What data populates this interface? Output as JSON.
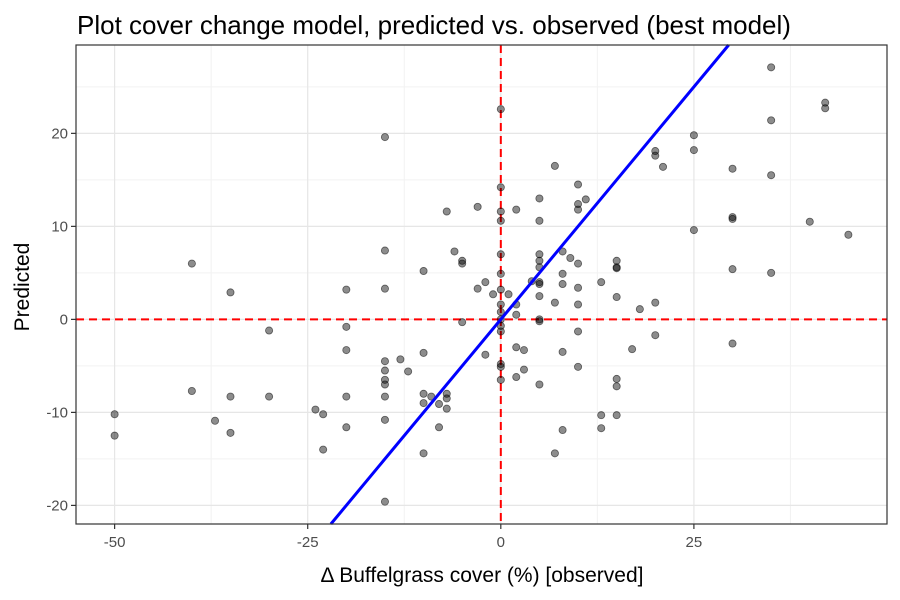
{
  "chart_data": {
    "type": "scatter",
    "title": "Plot cover change model, predicted vs. observed (best model)",
    "xlabel": "Δ Buffelgrass cover (%) [observed]",
    "ylabel": "Predicted",
    "xlim": [
      -55,
      50
    ],
    "ylim": [
      -22,
      29.5
    ],
    "x_ticks": [
      -50,
      -25,
      0,
      25
    ],
    "y_ticks": [
      -20,
      -10,
      0,
      10,
      20
    ],
    "grid": true,
    "reference_lines": [
      {
        "orientation": "vertical",
        "value": 0,
        "style": "dashed",
        "color": "#ff0000"
      },
      {
        "orientation": "horizontal",
        "value": 0,
        "style": "dashed",
        "color": "#ff0000"
      }
    ],
    "fit_line": {
      "slope": 1,
      "intercept": 0,
      "color": "#0000ff"
    },
    "point_color": "#000000",
    "point_opacity": 0.45,
    "points": [
      [
        -50,
        -10.2
      ],
      [
        -50,
        -12.5
      ],
      [
        -40,
        6.0
      ],
      [
        -40,
        -7.7
      ],
      [
        -37,
        -10.9
      ],
      [
        -35,
        2.9
      ],
      [
        -35,
        -8.3
      ],
      [
        -35,
        -12.2
      ],
      [
        -30,
        -1.2
      ],
      [
        -30,
        -8.3
      ],
      [
        -24,
        -9.7
      ],
      [
        -23,
        -10.2
      ],
      [
        -23,
        -14.0
      ],
      [
        -20,
        3.2
      ],
      [
        -20,
        -0.8
      ],
      [
        -20,
        -3.3
      ],
      [
        -20,
        -8.3
      ],
      [
        -20,
        -11.6
      ],
      [
        -15,
        19.6
      ],
      [
        -15,
        7.4
      ],
      [
        -15,
        3.3
      ],
      [
        -15,
        -4.5
      ],
      [
        -15,
        -5.5
      ],
      [
        -15,
        -6.5
      ],
      [
        -15,
        -7.0
      ],
      [
        -15,
        -8.3
      ],
      [
        -15,
        -10.8
      ],
      [
        -15,
        -19.6
      ],
      [
        -13,
        -4.3
      ],
      [
        -12,
        -5.6
      ],
      [
        -10,
        5.2
      ],
      [
        -10,
        -3.6
      ],
      [
        -10,
        -8.0
      ],
      [
        -10,
        -9.0
      ],
      [
        -10,
        -14.4
      ],
      [
        -9,
        -8.3
      ],
      [
        -8,
        -9.1
      ],
      [
        -8,
        -11.6
      ],
      [
        -7,
        -8.0
      ],
      [
        -7,
        -8.5
      ],
      [
        -7,
        -9.6
      ],
      [
        -7,
        11.6
      ],
      [
        -6,
        7.3
      ],
      [
        -5,
        6.3
      ],
      [
        -5,
        6.0
      ],
      [
        -5,
        -0.3
      ],
      [
        -3,
        12.1
      ],
      [
        -3,
        3.3
      ],
      [
        -2,
        4.0
      ],
      [
        -2,
        -3.8
      ],
      [
        -1,
        2.7
      ],
      [
        0,
        22.6
      ],
      [
        0,
        14.2
      ],
      [
        0,
        11.6
      ],
      [
        0,
        10.6
      ],
      [
        0,
        7.0
      ],
      [
        0,
        4.9
      ],
      [
        0,
        3.2
      ],
      [
        0,
        1.6
      ],
      [
        0,
        0.8
      ],
      [
        0,
        0.0
      ],
      [
        0,
        -0.7
      ],
      [
        0,
        -1.3
      ],
      [
        0,
        -4.8
      ],
      [
        0,
        -5.1
      ],
      [
        0,
        -6.5
      ],
      [
        1,
        2.7
      ],
      [
        2,
        11.8
      ],
      [
        2,
        1.6
      ],
      [
        2,
        0.5
      ],
      [
        2,
        -3.0
      ],
      [
        2,
        -6.2
      ],
      [
        3,
        -3.3
      ],
      [
        3,
        -5.4
      ],
      [
        4,
        4.1
      ],
      [
        5,
        13.0
      ],
      [
        5,
        10.6
      ],
      [
        5,
        7.0
      ],
      [
        5,
        6.3
      ],
      [
        5,
        5.6
      ],
      [
        5,
        4.0
      ],
      [
        5,
        3.8
      ],
      [
        5,
        2.5
      ],
      [
        5,
        0.0
      ],
      [
        5,
        -0.2
      ],
      [
        5,
        -7.0
      ],
      [
        7,
        16.5
      ],
      [
        7,
        1.8
      ],
      [
        7,
        -14.4
      ],
      [
        8,
        7.3
      ],
      [
        8,
        4.9
      ],
      [
        8,
        3.8
      ],
      [
        8,
        -3.5
      ],
      [
        8,
        -11.9
      ],
      [
        9,
        6.6
      ],
      [
        10,
        14.5
      ],
      [
        10,
        12.4
      ],
      [
        10,
        11.8
      ],
      [
        10,
        6.0
      ],
      [
        10,
        3.4
      ],
      [
        10,
        1.6
      ],
      [
        10,
        -1.3
      ],
      [
        10,
        -5.1
      ],
      [
        11,
        12.9
      ],
      [
        13,
        4.0
      ],
      [
        13,
        -10.3
      ],
      [
        13,
        -11.7
      ],
      [
        15,
        6.3
      ],
      [
        15,
        5.6
      ],
      [
        15,
        5.5
      ],
      [
        15,
        2.4
      ],
      [
        15,
        -6.4
      ],
      [
        15,
        -7.2
      ],
      [
        15,
        -10.3
      ],
      [
        17,
        -3.2
      ],
      [
        18,
        1.1
      ],
      [
        20,
        18.1
      ],
      [
        20,
        17.6
      ],
      [
        20,
        1.8
      ],
      [
        20,
        -1.7
      ],
      [
        21,
        16.4
      ],
      [
        25,
        19.8
      ],
      [
        25,
        18.2
      ],
      [
        25,
        9.6
      ],
      [
        30,
        16.2
      ],
      [
        30,
        11.0
      ],
      [
        30,
        10.8
      ],
      [
        30,
        5.4
      ],
      [
        30,
        -2.6
      ],
      [
        35,
        27.1
      ],
      [
        35,
        21.4
      ],
      [
        35,
        15.5
      ],
      [
        35,
        5.0
      ],
      [
        40,
        10.5
      ],
      [
        42,
        23.3
      ],
      [
        42,
        22.7
      ],
      [
        45,
        9.1
      ]
    ]
  }
}
